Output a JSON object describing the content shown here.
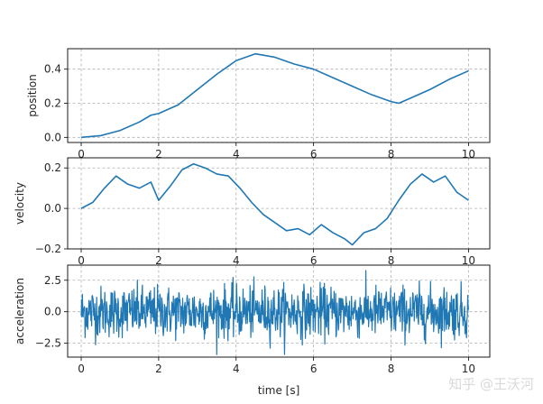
{
  "figure": {
    "xlabel": "time [s]",
    "watermark": "知乎 @王沃河"
  },
  "chart_data": [
    {
      "type": "line",
      "name_key": "position",
      "ylabel": "position",
      "xlim": [
        -0.35,
        10.55
      ],
      "ylim": [
        -0.03,
        0.52
      ],
      "xticks": [
        0,
        2,
        4,
        6,
        8,
        10
      ],
      "yticks": [
        0.0,
        0.2,
        0.4
      ],
      "ytick_labels": [
        "0.0",
        "0.2",
        "0.4"
      ],
      "grid": true,
      "color": "#1f77b4",
      "series": [
        {
          "x": [
            0,
            0.5,
            1.0,
            1.5,
            1.8,
            2.0,
            2.5,
            3.0,
            3.5,
            4.0,
            4.5,
            5.0,
            5.5,
            6.0,
            6.5,
            7.0,
            7.5,
            8.0,
            8.2,
            8.5,
            9.0,
            9.5,
            10.0
          ],
          "y": [
            0.0,
            0.01,
            0.04,
            0.09,
            0.13,
            0.14,
            0.19,
            0.28,
            0.37,
            0.45,
            0.49,
            0.47,
            0.43,
            0.4,
            0.35,
            0.3,
            0.25,
            0.21,
            0.2,
            0.23,
            0.28,
            0.34,
            0.39
          ]
        }
      ]
    },
    {
      "type": "line",
      "name_key": "velocity",
      "ylabel": "velocity",
      "xlim": [
        -0.35,
        10.55
      ],
      "ylim": [
        -0.2,
        0.25
      ],
      "xticks": [
        0,
        2,
        4,
        6,
        8,
        10
      ],
      "yticks": [
        -0.2,
        0.0,
        0.2
      ],
      "ytick_labels": [
        "−0.2",
        "0.0",
        "0.2"
      ],
      "grid": true,
      "color": "#1f77b4",
      "series": [
        {
          "x": [
            0,
            0.3,
            0.6,
            0.9,
            1.2,
            1.5,
            1.8,
            2.0,
            2.3,
            2.6,
            2.9,
            3.2,
            3.5,
            3.8,
            4.1,
            4.4,
            4.7,
            5.0,
            5.3,
            5.6,
            5.9,
            6.2,
            6.5,
            6.8,
            7.0,
            7.3,
            7.6,
            7.9,
            8.2,
            8.5,
            8.8,
            9.1,
            9.4,
            9.7,
            10.0
          ],
          "y": [
            0.0,
            0.03,
            0.1,
            0.16,
            0.12,
            0.1,
            0.13,
            0.04,
            0.11,
            0.19,
            0.22,
            0.2,
            0.17,
            0.16,
            0.1,
            0.03,
            -0.03,
            -0.07,
            -0.11,
            -0.1,
            -0.13,
            -0.08,
            -0.12,
            -0.15,
            -0.18,
            -0.12,
            -0.1,
            -0.05,
            0.04,
            0.12,
            0.17,
            0.13,
            0.16,
            0.08,
            0.04
          ]
        }
      ]
    },
    {
      "type": "line",
      "name_key": "acceleration",
      "ylabel": "acceleration",
      "xlim": [
        -0.35,
        10.55
      ],
      "ylim": [
        -3.6,
        3.7
      ],
      "xticks": [
        0,
        2,
        4,
        6,
        8,
        10
      ],
      "yticks": [
        -2.5,
        0.0,
        2.5
      ],
      "ytick_labels": [
        "−2.5",
        "0.0",
        "2.5"
      ],
      "grid": true,
      "color": "#1f77b4",
      "noise": {
        "count": 1000,
        "std": 1.0,
        "min": -3.4,
        "max": 3.3
      }
    }
  ]
}
